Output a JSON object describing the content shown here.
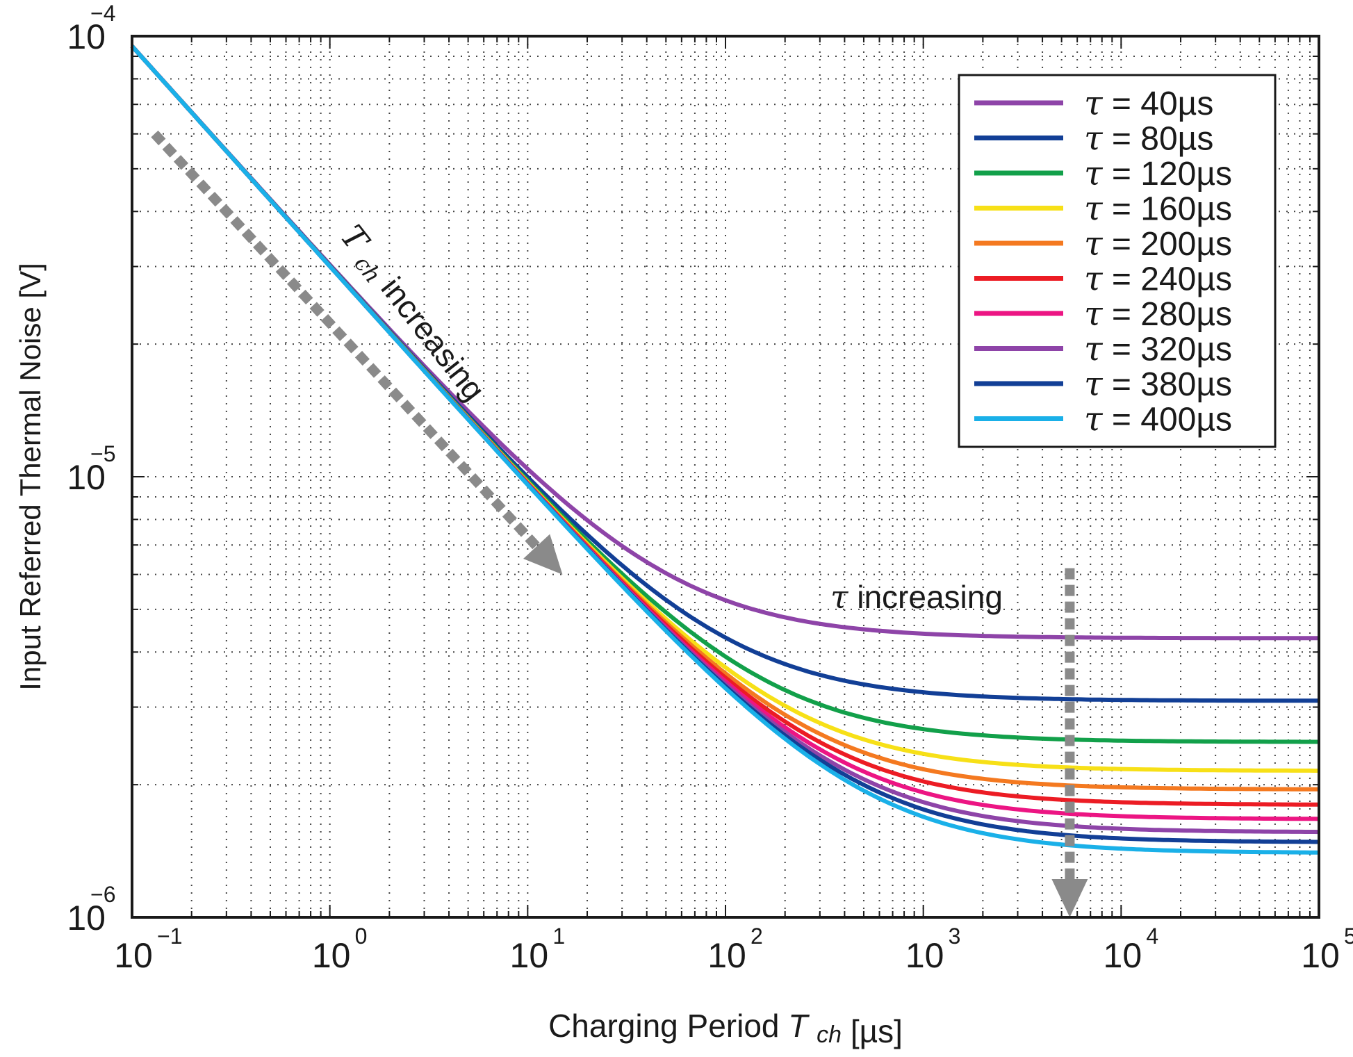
{
  "chart_data": {
    "type": "line",
    "title": "",
    "xlabel": "Charging Period",
    "xlabel_symbol": "T",
    "xlabel_sub": "ch",
    "xlabel_unit": "[µs]",
    "ylabel": "Input Referred Thermal Noise [V]",
    "xscale": "log",
    "yscale": "log",
    "xlim": [
      0.1,
      100000
    ],
    "ylim": [
      1e-06,
      0.0001
    ],
    "grid": true,
    "legend_position": "top-right",
    "x_ticks": [
      {
        "base": "10",
        "exp": "−1"
      },
      {
        "base": "10",
        "exp": "0"
      },
      {
        "base": "10",
        "exp": "1"
      },
      {
        "base": "10",
        "exp": "2"
      },
      {
        "base": "10",
        "exp": "3"
      },
      {
        "base": "10",
        "exp": "4"
      },
      {
        "base": "10",
        "exp": "5"
      }
    ],
    "y_ticks": [
      {
        "base": "10",
        "exp": "−6"
      },
      {
        "base": "10",
        "exp": "−5"
      },
      {
        "base": "10",
        "exp": "−4"
      }
    ],
    "series_shape": "y = sqrt(A^2 / Tch + B^2), A = 3.0e-5 V·µs^0.5, B = plateau",
    "series": [
      {
        "name": "τ = 40µs",
        "tau": 40,
        "plateau": 4.3e-06,
        "color": "#8e44a8"
      },
      {
        "name": "τ = 80µs",
        "tau": 80,
        "plateau": 3.1e-06,
        "color": "#123f96"
      },
      {
        "name": "τ = 120µs",
        "tau": 120,
        "plateau": 2.5e-06,
        "color": "#12a04a"
      },
      {
        "name": "τ = 160µs",
        "tau": 160,
        "plateau": 2.15e-06,
        "color": "#f7e017"
      },
      {
        "name": "τ = 200µs",
        "tau": 200,
        "plateau": 1.95e-06,
        "color": "#f47920"
      },
      {
        "name": "τ = 240µs",
        "tau": 240,
        "plateau": 1.8e-06,
        "color": "#ec1c24"
      },
      {
        "name": "τ = 280µs",
        "tau": 280,
        "plateau": 1.67e-06,
        "color": "#ec1583"
      },
      {
        "name": "τ = 320µs",
        "tau": 320,
        "plateau": 1.56e-06,
        "color": "#8e44a8"
      },
      {
        "name": "τ = 380µs",
        "tau": 380,
        "plateau": 1.48e-06,
        "color": "#123f96"
      },
      {
        "name": "τ = 400µs",
        "tau": 400,
        "plateau": 1.4e-06,
        "color": "#1ab0e8"
      }
    ],
    "annotations": [
      {
        "id": "tch",
        "symbol": "T",
        "sub": "ch",
        "text": " increasing",
        "arrow_from": [
          0.13,
          6e-05
        ],
        "arrow_to": [
          15,
          6e-06
        ]
      },
      {
        "id": "tau",
        "symbol": "τ",
        "text": " increasing",
        "arrow_from": [
          5500,
          6.2e-06
        ],
        "arrow_to": [
          5500,
          1e-06
        ]
      }
    ],
    "arrow_color": "#8a8a8a"
  }
}
